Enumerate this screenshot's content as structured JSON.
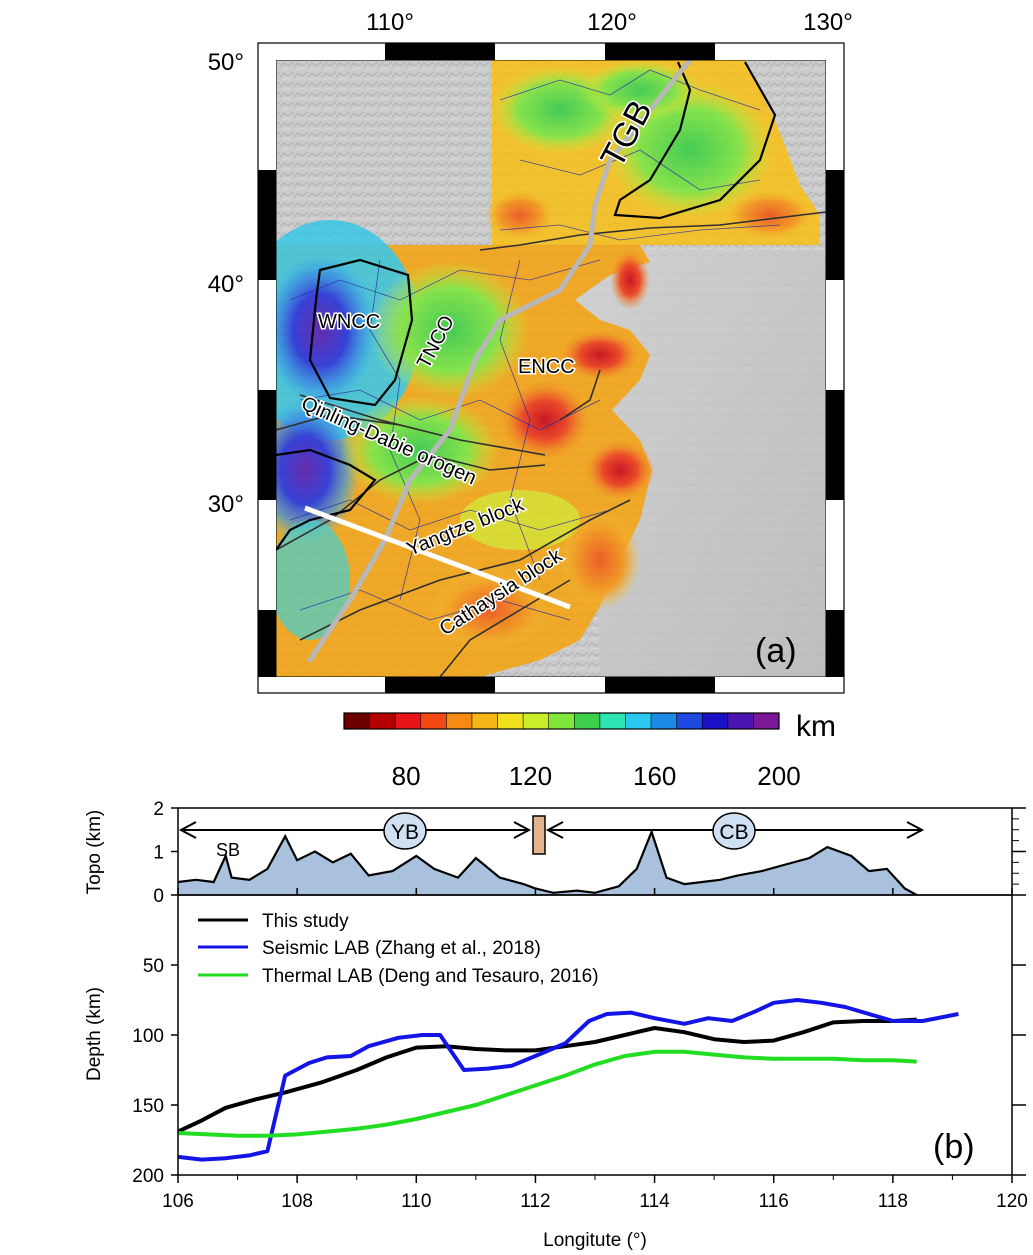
{
  "panel_a": {
    "panel_label": "(a)",
    "lon_ticks": [
      "110°",
      "120°",
      "130°"
    ],
    "lat_ticks": [
      "50°",
      "40°",
      "30°"
    ],
    "colorbar": {
      "unit": "km",
      "tick_labels": [
        "80",
        "120",
        "160",
        "200"
      ],
      "range": [
        60,
        200
      ],
      "colors": [
        "#6e0000",
        "#b30000",
        "#e8141a",
        "#f24a12",
        "#f78a12",
        "#f8b51a",
        "#f0e01e",
        "#c8ee2a",
        "#7fe63a",
        "#3ed04a",
        "#2ee6b4",
        "#2cc8f0",
        "#1e8ae8",
        "#1f48e0",
        "#1a10c8",
        "#4a14b0",
        "#7a1896"
      ]
    },
    "labels": {
      "tgb": "TGB",
      "wncc": "WNCC",
      "tnco": "TNCO",
      "encc": "ENCC",
      "qinling": "Qinling-Dabie orogen",
      "yangtze": "Yangtze block",
      "cathaysia": "Cathaysia block"
    }
  },
  "panel_b": {
    "panel_label": "(b)",
    "topo_ylabel": "Topo (km)",
    "depth_ylabel": "Depth (km)",
    "xlabel": "Longitute (°)",
    "topo_labels": {
      "sb": "SB",
      "yb": "YB",
      "cb": "CB"
    },
    "legend": [
      {
        "name": "This study",
        "color": "#000000"
      },
      {
        "name": "Seismic LAB (Zhang et al., 2018)",
        "color": "#1414e6"
      },
      {
        "name": "Thermal LAB (Deng and Tesauro, 2016)",
        "color": "#22dd22"
      }
    ]
  },
  "chart_data": [
    {
      "type": "area",
      "ylabel": "Topo (km)",
      "xlim": [
        106,
        120
      ],
      "ylim": [
        0,
        2
      ],
      "yticks": [
        "0",
        "1",
        "2"
      ],
      "x": [
        106.0,
        106.3,
        106.6,
        106.8,
        106.9,
        107.2,
        107.5,
        107.8,
        108.0,
        108.3,
        108.6,
        108.9,
        109.2,
        109.6,
        110.0,
        110.3,
        110.7,
        111.0,
        111.4,
        111.8,
        112.0,
        112.3,
        112.7,
        113.0,
        113.4,
        113.7,
        113.95,
        114.2,
        114.5,
        114.8,
        115.1,
        115.4,
        115.8,
        116.2,
        116.6,
        116.9,
        117.3,
        117.6,
        117.9,
        118.2,
        118.4
      ],
      "values": [
        0.3,
        0.35,
        0.3,
        0.9,
        0.4,
        0.35,
        0.6,
        1.35,
        0.8,
        1.0,
        0.75,
        0.95,
        0.45,
        0.55,
        0.9,
        0.6,
        0.4,
        0.85,
        0.4,
        0.25,
        0.15,
        0.05,
        0.1,
        0.05,
        0.2,
        0.6,
        1.45,
        0.4,
        0.25,
        0.3,
        0.35,
        0.45,
        0.55,
        0.7,
        0.85,
        1.1,
        0.9,
        0.55,
        0.6,
        0.15,
        0.0
      ],
      "annotations": [
        "SB",
        "YB",
        "CB"
      ]
    },
    {
      "type": "line",
      "xlabel": "Longitute (°)",
      "ylabel": "Depth (km)",
      "xlim": [
        106,
        120
      ],
      "ylim": [
        200,
        0
      ],
      "xticks": [
        "106",
        "108",
        "110",
        "112",
        "114",
        "116",
        "118",
        "120"
      ],
      "yticks": [
        "50",
        "100",
        "150",
        "200"
      ],
      "legend_position": "top-left",
      "series": [
        {
          "name": "This study",
          "x": [
            106.0,
            106.4,
            106.8,
            107.3,
            107.8,
            108.4,
            109.0,
            109.5,
            110.0,
            110.5,
            111.0,
            111.5,
            112.0,
            112.5,
            113.0,
            113.5,
            114.0,
            114.5,
            115.0,
            115.5,
            116.0,
            116.5,
            117.0,
            117.5,
            118.0,
            118.4
          ],
          "values": [
            169,
            161,
            152,
            146,
            141,
            134,
            125,
            116,
            109,
            108,
            110,
            111,
            111,
            108,
            105,
            100,
            95,
            98,
            103,
            105,
            104,
            98,
            91,
            90,
            90,
            89
          ]
        },
        {
          "name": "Seismic LAB (Zhang et al., 2018)",
          "x": [
            106.0,
            106.4,
            106.8,
            107.2,
            107.5,
            107.8,
            108.2,
            108.5,
            108.9,
            109.2,
            109.7,
            110.1,
            110.4,
            110.8,
            111.2,
            111.6,
            112.0,
            112.5,
            112.9,
            113.2,
            113.6,
            114.0,
            114.5,
            114.9,
            115.3,
            115.7,
            116.0,
            116.4,
            116.8,
            117.2,
            117.6,
            118.0,
            118.5,
            119.1
          ],
          "values": [
            187,
            189,
            188,
            186,
            183,
            129,
            120,
            116,
            115,
            108,
            102,
            100,
            100,
            125,
            124,
            122,
            115,
            106,
            90,
            85,
            84,
            88,
            92,
            88,
            90,
            83,
            77,
            75,
            77,
            80,
            85,
            90,
            90,
            85
          ]
        },
        {
          "name": "Thermal LAB (Deng and Tesauro, 2016)",
          "x": [
            106.0,
            106.5,
            107.0,
            107.5,
            108.0,
            108.5,
            109.0,
            109.5,
            110.0,
            110.5,
            111.0,
            111.5,
            112.0,
            112.5,
            113.0,
            113.5,
            114.0,
            114.5,
            115.0,
            115.5,
            116.0,
            116.5,
            117.0,
            117.5,
            118.0,
            118.4
          ],
          "values": [
            170,
            171,
            172,
            172,
            171,
            169,
            167,
            164,
            160,
            155,
            150,
            143,
            136,
            129,
            121,
            115,
            112,
            112,
            114,
            116,
            117,
            117,
            117,
            118,
            118,
            119
          ]
        }
      ]
    }
  ]
}
